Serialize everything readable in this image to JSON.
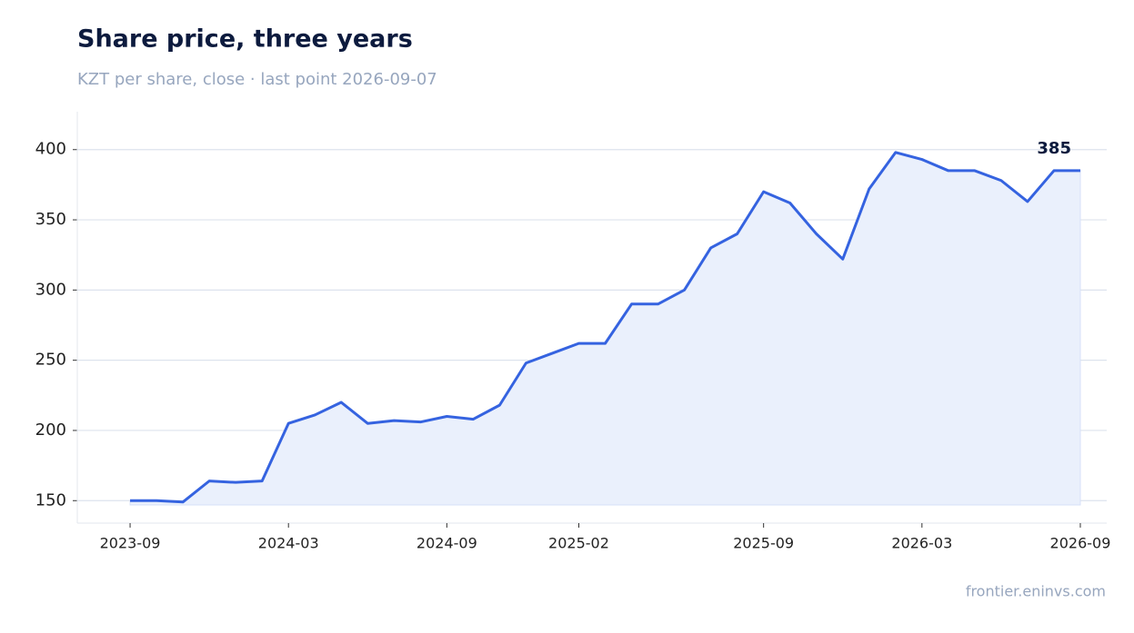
{
  "chart_data": {
    "type": "line",
    "title": "Share price, three years",
    "subtitle": "KZT per share, close · last point 2026-09-07",
    "source": "frontier.eninvs.com",
    "x": [
      "2023-09",
      "2023-10",
      "2023-11",
      "2023-12",
      "2024-01",
      "2024-02",
      "2024-03",
      "2024-04",
      "2024-05",
      "2024-06",
      "2024-07",
      "2024-08",
      "2024-09",
      "2024-10",
      "2024-11",
      "2024-12",
      "2025-01",
      "2025-02",
      "2025-03",
      "2025-04",
      "2025-05",
      "2025-06",
      "2025-07",
      "2025-08",
      "2025-09",
      "2025-10",
      "2025-11",
      "2025-12",
      "2026-01",
      "2026-02",
      "2026-03",
      "2026-04",
      "2026-05",
      "2026-06",
      "2026-07",
      "2026-08",
      "2026-09"
    ],
    "values": [
      150,
      150,
      149,
      164,
      163,
      164,
      205,
      211,
      220,
      205,
      207,
      206,
      210,
      208,
      218,
      248,
      255,
      262,
      262,
      290,
      290,
      300,
      330,
      340,
      370,
      362,
      340,
      322,
      372,
      398,
      393,
      385,
      385,
      378,
      363,
      385,
      385
    ],
    "color": "#3563e0",
    "fill": "#eaf0fc",
    "xlim": [
      "2023-07",
      "2026-10"
    ],
    "xticks": [
      "2023-09",
      "2024-03",
      "2024-09",
      "2025-02",
      "2025-09",
      "2026-03",
      "2026-09"
    ],
    "ylim": [
      134,
      427
    ],
    "yticks": [
      150,
      200,
      250,
      300,
      350,
      400
    ],
    "grid": true
  }
}
